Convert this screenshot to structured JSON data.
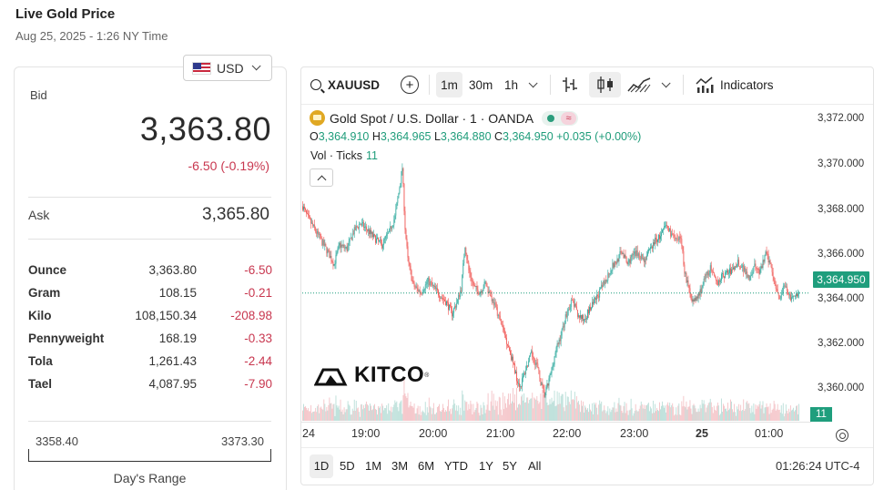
{
  "header": {
    "title": "Live Gold Price",
    "date": "Aug 25, 2025 - 1:26 NY Time"
  },
  "currency": {
    "selected": "USD",
    "flag_icon": "us-flag-icon"
  },
  "price": {
    "bid_label": "Bid",
    "bid": "3,363.80",
    "change": "-6.50 (-0.19%)",
    "ask_label": "Ask",
    "ask": "3,365.80"
  },
  "units": [
    {
      "name": "Ounce",
      "price": "3,363.80",
      "change": "-6.50"
    },
    {
      "name": "Gram",
      "price": "108.15",
      "change": "-0.21"
    },
    {
      "name": "Kilo",
      "price": "108,150.34",
      "change": "-208.98"
    },
    {
      "name": "Pennyweight",
      "price": "168.19",
      "change": "-0.33"
    },
    {
      "name": "Tola",
      "price": "1,261.43",
      "change": "-2.44"
    },
    {
      "name": "Tael",
      "price": "4,087.95",
      "change": "-7.90"
    }
  ],
  "days_range": {
    "low": "3358.40",
    "high": "3373.30",
    "label": "Day's Range"
  },
  "chart_toolbar": {
    "symbol": "XAUUSD",
    "intervals": [
      "1m",
      "30m",
      "1h"
    ],
    "active_interval": "1m",
    "indicators_label": "Indicators"
  },
  "chart_legend": {
    "title": "Gold Spot / U.S. Dollar · 1 · OANDA",
    "o_label": "O",
    "o": "3,364.910",
    "h_label": "H",
    "h": "3,364.965",
    "l_label": "L",
    "l": "3,364.880",
    "c_label": "C",
    "c": "3,364.950",
    "chg": "+0.035 (+0.00%)",
    "vol_label": "Vol · Ticks",
    "vol_value": "11"
  },
  "chart_data": {
    "type": "candlestick",
    "symbol": "XAUUSD",
    "y_ticks": [
      "3,372.000",
      "3,370.000",
      "3,368.000",
      "3,366.000",
      "3,364.000",
      "3,362.000",
      "3,360.000"
    ],
    "ylim": [
      3359.0,
      3373.6
    ],
    "x_ticks": [
      "24",
      "19:00",
      "20:00",
      "21:00",
      "22:00",
      "23:00",
      "25",
      "01:00"
    ],
    "last_price": "3,364.950",
    "last_volume": "11",
    "colors": {
      "up": "#26a69a",
      "down": "#ef5350",
      "up_vol": "#b9ded8",
      "down_vol": "#f4c2c6"
    },
    "path_keypoints": [
      [
        0,
        3369.0
      ],
      [
        5,
        3368.5
      ],
      [
        12,
        3368.0
      ],
      [
        20,
        3367.4
      ],
      [
        28,
        3366.8
      ],
      [
        34,
        3366.3
      ],
      [
        40,
        3367.2
      ],
      [
        48,
        3367.0
      ],
      [
        55,
        3367.8
      ],
      [
        62,
        3368.2
      ],
      [
        70,
        3367.9
      ],
      [
        78,
        3367.5
      ],
      [
        86,
        3367.2
      ],
      [
        94,
        3367.8
      ],
      [
        100,
        3368.5
      ],
      [
        104,
        3369.6
      ],
      [
        108,
        3370.8
      ],
      [
        111,
        3368.0
      ],
      [
        114,
        3366.5
      ],
      [
        120,
        3365.3
      ],
      [
        128,
        3365.0
      ],
      [
        136,
        3365.5
      ],
      [
        144,
        3365.1
      ],
      [
        150,
        3364.8
      ],
      [
        156,
        3364.5
      ],
      [
        162,
        3364.0
      ],
      [
        168,
        3364.6
      ],
      [
        172,
        3365.2
      ],
      [
        176,
        3367.2
      ],
      [
        180,
        3366.0
      ],
      [
        186,
        3365.2
      ],
      [
        192,
        3365.0
      ],
      [
        198,
        3365.4
      ],
      [
        204,
        3364.8
      ],
      [
        210,
        3364.2
      ],
      [
        216,
        3363.4
      ],
      [
        222,
        3362.6
      ],
      [
        228,
        3361.7
      ],
      [
        232,
        3361.0
      ],
      [
        236,
        3360.6
      ],
      [
        242,
        3361.4
      ],
      [
        248,
        3362.1
      ],
      [
        254,
        3361.6
      ],
      [
        258,
        3360.8
      ],
      [
        262,
        3360.2
      ],
      [
        266,
        3360.7
      ],
      [
        270,
        3361.4
      ],
      [
        274,
        3362.2
      ],
      [
        280,
        3363.0
      ],
      [
        286,
        3364.0
      ],
      [
        292,
        3364.6
      ],
      [
        298,
        3364.0
      ],
      [
        304,
        3363.7
      ],
      [
        310,
        3364.1
      ],
      [
        316,
        3364.5
      ],
      [
        322,
        3365.0
      ],
      [
        328,
        3365.5
      ],
      [
        334,
        3366.1
      ],
      [
        340,
        3366.4
      ],
      [
        346,
        3366.9
      ],
      [
        352,
        3366.3
      ],
      [
        358,
        3366.7
      ],
      [
        364,
        3366.8
      ],
      [
        370,
        3366.5
      ],
      [
        376,
        3366.9
      ],
      [
        382,
        3367.4
      ],
      [
        388,
        3367.6
      ],
      [
        394,
        3368.1
      ],
      [
        400,
        3367.7
      ],
      [
        406,
        3367.3
      ],
      [
        410,
        3367.6
      ],
      [
        414,
        3366.0
      ],
      [
        418,
        3365.2
      ],
      [
        424,
        3364.5
      ],
      [
        430,
        3364.9
      ],
      [
        436,
        3365.6
      ],
      [
        442,
        3366.1
      ],
      [
        448,
        3365.4
      ],
      [
        454,
        3365.7
      ],
      [
        460,
        3365.9
      ],
      [
        466,
        3366.0
      ],
      [
        472,
        3366.4
      ],
      [
        478,
        3366.1
      ],
      [
        484,
        3365.7
      ],
      [
        490,
        3366.2
      ],
      [
        496,
        3365.9
      ],
      [
        502,
        3366.8
      ],
      [
        508,
        3366.2
      ],
      [
        514,
        3365.1
      ],
      [
        518,
        3364.7
      ],
      [
        522,
        3365.3
      ],
      [
        526,
        3365.0
      ],
      [
        530,
        3364.6
      ],
      [
        534,
        3364.9
      ],
      [
        538,
        3364.95
      ]
    ]
  },
  "range_buttons": [
    "1D",
    "5D",
    "1M",
    "3M",
    "6M",
    "YTD",
    "1Y",
    "5Y",
    "All"
  ],
  "active_range": "1D",
  "clock": "01:26:24 UTC-4",
  "watermark": "KITCO"
}
